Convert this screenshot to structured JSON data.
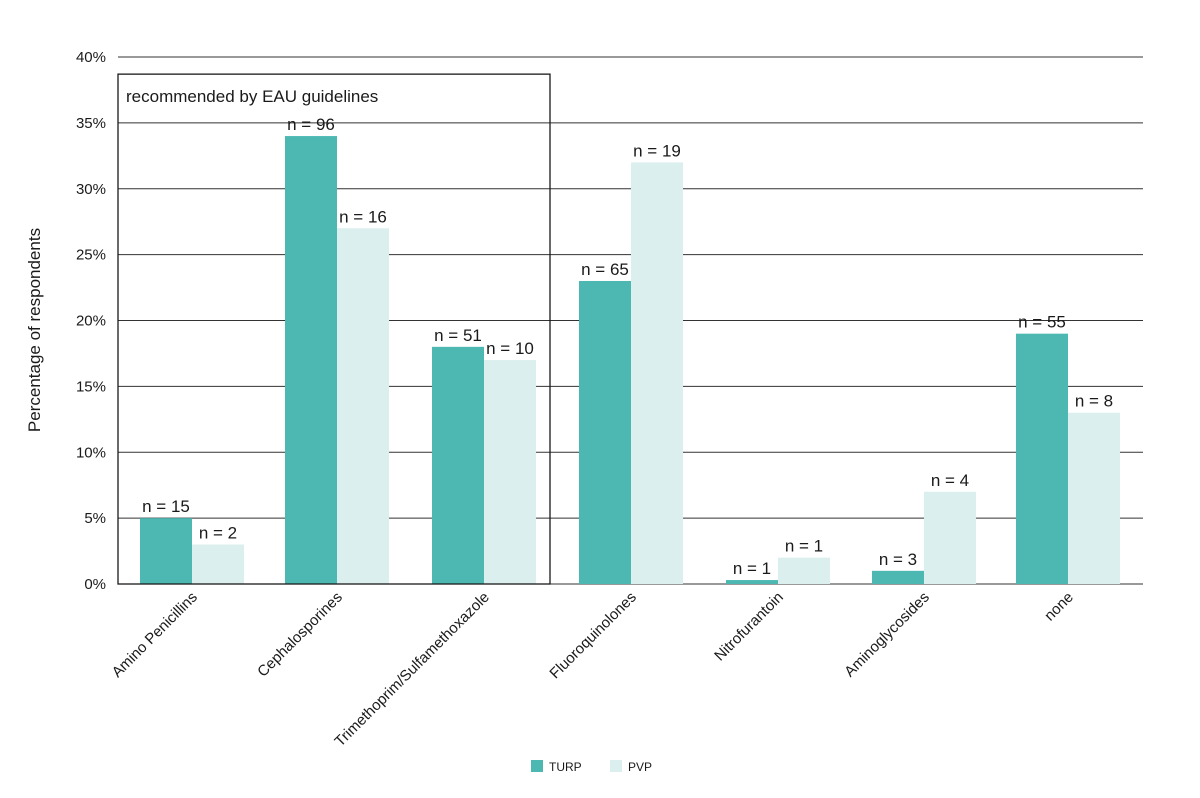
{
  "chart_data": {
    "type": "bar",
    "title": "",
    "xlabel": "",
    "ylabel": "Percentage of respondents",
    "ylim": [
      0,
      40
    ],
    "yticks": [
      0,
      5,
      10,
      15,
      20,
      25,
      30,
      35,
      40
    ],
    "ytick_labels": [
      "0%",
      "5%",
      "10%",
      "15%",
      "20%",
      "25%",
      "30%",
      "35%",
      "40%"
    ],
    "grid": true,
    "categories": [
      "Amino Penicillins",
      "Cephalosporines",
      "Trimethoprim/Sulfamethoxazole",
      "Fluoroquinolones",
      "Nitrofurantoin",
      "Aminoglycosides",
      "none"
    ],
    "series": [
      {
        "name": "TURP",
        "color": "#4db8b2",
        "values": [
          5,
          34,
          18,
          23,
          0.3,
          1,
          19
        ],
        "labels": [
          "n = 15",
          "n = 96",
          "n = 51",
          "n = 65",
          "n = 1",
          "n = 3",
          "n = 55"
        ]
      },
      {
        "name": "PVP",
        "color": "#dbf0ee",
        "values": [
          3,
          27,
          17,
          32,
          2,
          7,
          13
        ],
        "labels": [
          "n = 2",
          "n = 16",
          "n = 10",
          "n = 19",
          "n = 1",
          "n = 4",
          "n = 8"
        ]
      }
    ],
    "annotation": {
      "text": "recommended by EAU guidelines",
      "categories_spanned": [
        "Amino Penicillins",
        "Cephalosporines",
        "Trimethoprim/Sulfamethoxazole"
      ],
      "y_top": 38.7
    },
    "legend": {
      "position": "bottom-center"
    }
  }
}
